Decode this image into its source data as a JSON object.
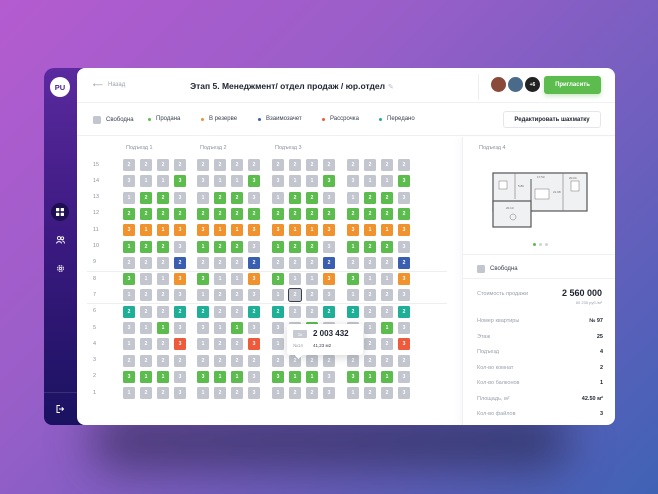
{
  "app": {
    "logo": "PU",
    "sidebar": {
      "items": [
        {
          "icon": "grid-icon",
          "active": true
        },
        {
          "icon": "users-icon",
          "active": false
        },
        {
          "icon": "gear-icon",
          "active": false
        }
      ],
      "logout_icon": "logout-icon"
    }
  },
  "header": {
    "back_label": "Назад",
    "title": "Этап 5. Менеджмент/ отдел продаж / юр.отдел",
    "edit_icon": "✎",
    "avatars": [
      {
        "color": "#8a4a3a",
        "label": ""
      },
      {
        "color": "#4a6a8a",
        "label": ""
      },
      {
        "color": "#222222",
        "label": "+6"
      }
    ],
    "invite_label": "Пригласить"
  },
  "legend": {
    "items": [
      {
        "label": "Свободна",
        "color": "#c3c6ce",
        "dot": false
      },
      {
        "label": "Продана",
        "color": "#5cbc4e",
        "dot": true
      },
      {
        "label": "В резерве",
        "color": "#f0922e",
        "dot": true
      },
      {
        "label": "Взаимозачет",
        "color": "#3b5fb0",
        "dot": true
      },
      {
        "label": "Рассрочка",
        "color": "#ee5a3c",
        "dot": true
      },
      {
        "label": "Передано",
        "color": "#1fae96",
        "dot": true
      }
    ],
    "edit_button_label": "Редактировать шахматку"
  },
  "colors": {
    "free": "#c3c6ce",
    "sold": "#5cbc4e",
    "reserve": "#f0922e",
    "offset": "#3b5fb0",
    "installment": "#ee5a3c",
    "transferred": "#1fae96"
  },
  "grid": {
    "entrances": [
      "Подъезд 1",
      "Подъезд 2",
      "Подъезд 3",
      ""
    ],
    "floors": [
      "15",
      "14",
      "13",
      "12",
      "11",
      "10",
      "9",
      "8",
      "7",
      "6",
      "5",
      "4",
      "3",
      "2",
      "1"
    ],
    "floor_rows": [
      [
        [
          "2",
          "free"
        ],
        [
          "2",
          "free"
        ],
        [
          "2",
          "free"
        ],
        [
          "2",
          "free"
        ]
      ],
      [
        [
          "3",
          "free"
        ],
        [
          "1",
          "free"
        ],
        [
          "1",
          "free"
        ],
        [
          "3",
          "sold"
        ]
      ],
      [
        [
          "1",
          "free"
        ],
        [
          "2",
          "sold"
        ],
        [
          "2",
          "sold"
        ],
        [
          "3",
          "free"
        ]
      ],
      [
        [
          "2",
          "sold"
        ],
        [
          "2",
          "sold"
        ],
        [
          "2",
          "sold"
        ],
        [
          "2",
          "sold"
        ]
      ],
      [
        [
          "3",
          "reserve"
        ],
        [
          "1",
          "reserve"
        ],
        [
          "1",
          "reserve"
        ],
        [
          "3",
          "reserve"
        ]
      ],
      [
        [
          "1",
          "sold"
        ],
        [
          "2",
          "sold"
        ],
        [
          "2",
          "sold"
        ],
        [
          "3",
          "free"
        ]
      ],
      [
        [
          "2",
          "free"
        ],
        [
          "2",
          "free"
        ],
        [
          "2",
          "free"
        ],
        [
          "2",
          "offset"
        ]
      ],
      [
        [
          "3",
          "sold"
        ],
        [
          "1",
          "free"
        ],
        [
          "1",
          "free"
        ],
        [
          "3",
          "reserve"
        ]
      ],
      [
        [
          "1",
          "free"
        ],
        [
          "2",
          "free"
        ],
        [
          "2",
          "free"
        ],
        [
          "3",
          "free"
        ]
      ],
      [
        [
          "2",
          "transferred"
        ],
        [
          "2",
          "free"
        ],
        [
          "2",
          "free"
        ],
        [
          "2",
          "transferred"
        ]
      ],
      [
        [
          "3",
          "free"
        ],
        [
          "1",
          "free"
        ],
        [
          "1",
          "sold"
        ],
        [
          "3",
          "free"
        ]
      ],
      [
        [
          "1",
          "free"
        ],
        [
          "2",
          "free"
        ],
        [
          "2",
          "free"
        ],
        [
          "3",
          "installment"
        ]
      ],
      [
        [
          "2",
          "free"
        ],
        [
          "2",
          "free"
        ],
        [
          "2",
          "free"
        ],
        [
          "2",
          "free"
        ]
      ],
      [
        [
          "3",
          "sold"
        ],
        [
          "1",
          "sold"
        ],
        [
          "1",
          "sold"
        ],
        [
          "3",
          "free"
        ]
      ],
      [
        [
          "1",
          "free"
        ],
        [
          "2",
          "free"
        ],
        [
          "2",
          "free"
        ],
        [
          "3",
          "free"
        ]
      ]
    ],
    "selected": {
      "entrance": 2,
      "floor_index": 8,
      "col": 1
    }
  },
  "tooltip": {
    "rooms_badge": "1к",
    "price": "2 003 432",
    "number": "№14",
    "area": "41,23 м2"
  },
  "details": {
    "entrance_label": "Подъезд 4",
    "status_label": "Свободна",
    "status_color": "#c3c6ce",
    "carousel_dots": 3,
    "carousel_active": 0,
    "price_label": "Стоимость продажи",
    "price": "2 560 000",
    "price_per_m2": "60 235 руб./м²",
    "rows": [
      {
        "key": "Номер квартиры",
        "value": "№ 97"
      },
      {
        "key": "Этаж",
        "value": "25"
      },
      {
        "key": "Подъезд",
        "value": "4"
      },
      {
        "key": "Кол-во комнат",
        "value": "2"
      },
      {
        "key": "Кол-во балконов",
        "value": "1"
      },
      {
        "key": "Площадь, м²",
        "value": "42.50 м²"
      },
      {
        "key": "Кол-во файлов",
        "value": "3"
      }
    ]
  }
}
